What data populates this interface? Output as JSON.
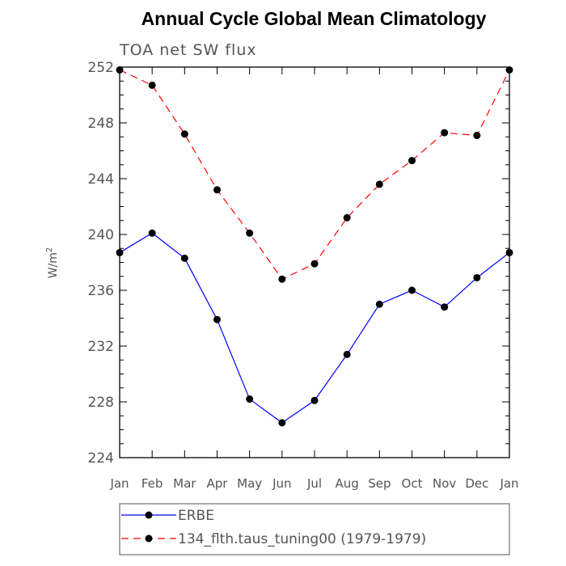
{
  "chart_data": {
    "type": "line",
    "title": "Annual Cycle Global Mean Climatology",
    "subtitle": "TOA net SW flux",
    "ylabel": "W/m",
    "ylabel_sup": "2",
    "xlabel": "",
    "categories": [
      "Jan",
      "Feb",
      "Mar",
      "Apr",
      "May",
      "Jun",
      "Jul",
      "Aug",
      "Sep",
      "Oct",
      "Nov",
      "Dec",
      "Jan"
    ],
    "ylim": [
      224,
      252
    ],
    "yticks": [
      "224",
      "228",
      "232",
      "236",
      "240",
      "244",
      "248",
      "252"
    ],
    "grid": false,
    "legend_placement": "bottom",
    "series": [
      {
        "name": "ERBE",
        "color": "#0000ff",
        "dash": "solid",
        "values": [
          238.7,
          240.1,
          238.3,
          233.9,
          228.2,
          226.5,
          228.1,
          231.4,
          235.0,
          236.0,
          234.8,
          236.9,
          238.7
        ]
      },
      {
        "name": "134_flth.taus_tuning00 (1979-1979)",
        "color": "#ff0000",
        "dash": "dashed",
        "values": [
          251.8,
          250.7,
          247.2,
          243.2,
          240.1,
          236.8,
          237.9,
          241.2,
          243.6,
          245.3,
          247.3,
          247.1,
          251.8
        ]
      }
    ]
  }
}
